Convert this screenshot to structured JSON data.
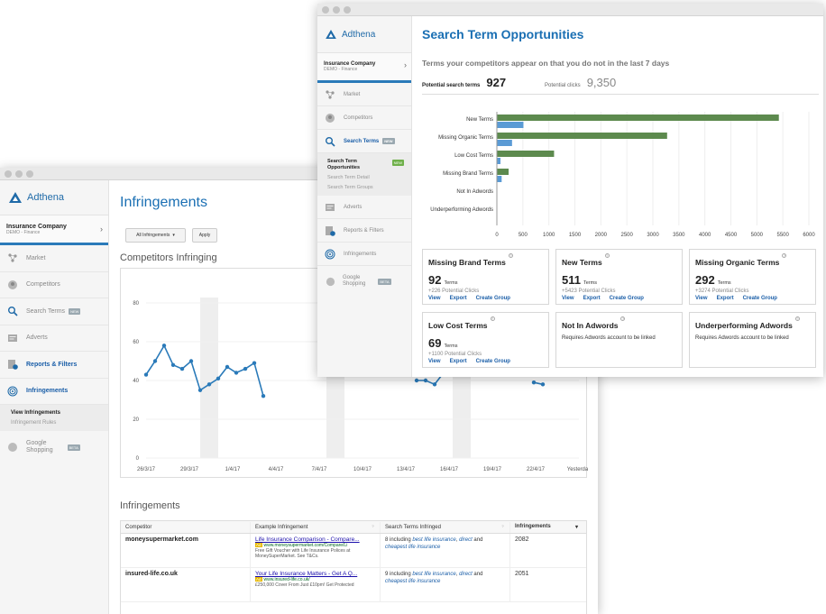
{
  "back_window": {
    "brand": "Adthena",
    "company": {
      "name": "Insurance Company",
      "sub": "DEMO - Finance"
    },
    "nav": [
      {
        "label": "Market",
        "icon": "market-icon"
      },
      {
        "label": "Competitors",
        "icon": "competitors-icon"
      },
      {
        "label": "Search Terms",
        "icon": "search-icon",
        "badge": "NEW"
      },
      {
        "label": "Adverts",
        "icon": "adverts-icon"
      },
      {
        "label": "Reports & Filters",
        "icon": "reports-icon"
      },
      {
        "label": "Infringements",
        "icon": "target-icon"
      }
    ],
    "subnav": {
      "active": "View Infringements",
      "other": "Infringement Rules"
    },
    "shopping": {
      "line1": "Google",
      "line2": "Shopping",
      "badge": "BETA"
    },
    "title": "Infringements",
    "filter": {
      "select": "All Infringements",
      "apply": "Apply"
    },
    "chart_section": "Competitors Infringing",
    "table_section": "Infringements",
    "table": {
      "headers": [
        "Competitor",
        "Example Infringement",
        "Search Terms Infringed",
        "Infringements"
      ],
      "rows": [
        {
          "competitor": "moneysupermarket.com",
          "ad_title": "Life Insurance Comparison - Compare...",
          "ad_tag": "Ad",
          "ad_url": "www.moneysupermarket.com/Compare/Li",
          "ad_desc": "Free Gift Voucher with Life Insurance Polices at MoneySuperMarket. See T&Cs.",
          "terms_prefix": "8 including ",
          "term1": "best life insurance",
          "term2": "direct",
          "terms_and": " and ",
          "term3": "cheapest life insurance",
          "count": "2082"
        },
        {
          "competitor": "insured-life.co.uk",
          "ad_title": "Your Life Insurance Matters - Get A Q...",
          "ad_tag": "Ad",
          "ad_url": "www.insured-life.co.uk/",
          "ad_desc": "£250,000 Cover From Just £10pm! Get Protected",
          "terms_prefix": "9 including ",
          "term1": "best life insurance",
          "term2": "direct",
          "terms_and": " and ",
          "term3": "cheapest life insurance",
          "count": "2051"
        }
      ]
    }
  },
  "front_window": {
    "brand": "Adthena",
    "company": {
      "name": "Insurance Company",
      "sub": "DEMO - Finance"
    },
    "nav": [
      {
        "label": "Market",
        "icon": "market-icon"
      },
      {
        "label": "Competitors",
        "icon": "competitors-icon"
      },
      {
        "label": "Search Terms",
        "icon": "search-icon",
        "badge": "NEW"
      }
    ],
    "subnav": {
      "active_line1": "Search Term",
      "active_line2": "Opportunities",
      "badge": "NEW",
      "item2": "Search Term Detail",
      "item3": "Search Term Groups"
    },
    "nav2": [
      {
        "label": "Adverts",
        "icon": "adverts-icon"
      },
      {
        "label": "Reports & Filters",
        "icon": "reports-icon"
      },
      {
        "label": "Infringements",
        "icon": "target-icon"
      }
    ],
    "shopping": {
      "line1": "Google",
      "line2": "Shopping",
      "badge": "BETA"
    },
    "title": "Search Term Opportunities",
    "subtitle": "Terms your competitors appear on that you do not in the last 7 days",
    "potential_terms_label": "Potential search terms",
    "potential_terms_value": "927",
    "potential_clicks_label": "Potential clicks",
    "potential_clicks_value": "9,350",
    "cards": [
      {
        "title": "Missing Brand Terms",
        "num": "92",
        "unit": "Terms",
        "pc": "+226 Potential Clicks",
        "links": [
          "View",
          "Export",
          "Create Group"
        ]
      },
      {
        "title": "New Terms",
        "num": "511",
        "unit": "Terms",
        "pc": "+5423 Potential Clicks",
        "links": [
          "View",
          "Export",
          "Create Group"
        ]
      },
      {
        "title": "Missing Organic Terms",
        "num": "292",
        "unit": "Terms",
        "pc": "+3274 Potential Clicks",
        "links": [
          "View",
          "Export",
          "Create Group"
        ]
      },
      {
        "title": "Low Cost Terms",
        "num": "69",
        "unit": "Terms",
        "pc": "+1100 Potential Clicks",
        "links": [
          "View",
          "Export",
          "Create Group"
        ]
      },
      {
        "title": "Not In Adwords",
        "note": "Requires Adwords account to be linked"
      },
      {
        "title": "Underperforming Adwords",
        "note": "Requires Adwords account to be linked"
      }
    ]
  },
  "chart_data": [
    {
      "type": "line",
      "title": "Competitors Infringing",
      "x_ticks": [
        "26/3/17",
        "29/3/17",
        "1/4/17",
        "4/4/17",
        "7/4/17",
        "10/4/17",
        "13/4/17",
        "16/4/17",
        "19/4/17",
        "22/4/17",
        "Yesterday"
      ],
      "ylim": [
        0,
        80
      ],
      "y_ticks": [
        0,
        20,
        40,
        60,
        80
      ],
      "color": "#2a7ab9",
      "values": [
        43,
        50,
        58,
        48,
        46,
        50,
        35,
        38,
        41,
        47,
        44,
        46,
        49,
        32,
        null,
        null,
        null,
        null,
        null,
        null,
        null,
        null,
        null,
        null,
        null,
        null,
        null,
        null,
        null,
        null,
        40,
        40,
        38,
        44,
        null,
        null,
        null,
        null,
        null,
        null,
        null,
        44,
        null,
        39,
        38,
        null,
        null,
        null,
        44
      ]
    },
    {
      "type": "bar",
      "orientation": "horizontal",
      "categories": [
        "New Terms",
        "Missing Organic Terms",
        "Low Cost Terms",
        "Missing Brand Terms",
        "Not In Adwords",
        "Underperforming Adwords"
      ],
      "series": [
        {
          "name": "Search Terms",
          "color": "#5b9bd5",
          "values": [
            511,
            292,
            69,
            92,
            0,
            0
          ]
        },
        {
          "name": "Potential Clicks",
          "color": "#5d8a4e",
          "values": [
            5423,
            3274,
            1100,
            226,
            0,
            0
          ]
        }
      ],
      "xlim": [
        0,
        6000
      ],
      "x_ticks": [
        0,
        500,
        1000,
        1500,
        2000,
        2500,
        3000,
        3500,
        4000,
        4500,
        5000,
        5500,
        6000
      ],
      "legend": "bottom"
    }
  ]
}
